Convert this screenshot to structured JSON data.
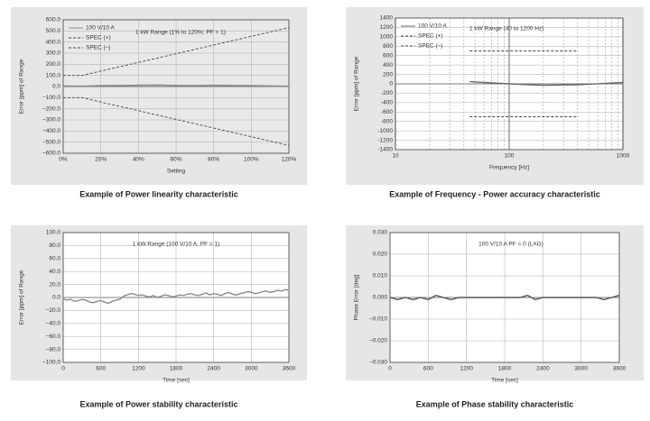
{
  "chart_data": [
    {
      "type": "line",
      "title": "Example of Power linearity characteristic",
      "annotation": "1 kW Range (1% to 120%; PF = 1)",
      "x_label": "Setting",
      "y_label": "Error [ppm] of Range",
      "grid": true,
      "xlim": [
        0,
        120
      ],
      "xticks": [
        {
          "value": 0,
          "label": "0%"
        },
        {
          "value": 20,
          "label": "20%"
        },
        {
          "value": 40,
          "label": "40%"
        },
        {
          "value": 60,
          "label": "60%"
        },
        {
          "value": 80,
          "label": "80%"
        },
        {
          "value": 100,
          "label": "100%"
        },
        {
          "value": 120,
          "label": "120%"
        }
      ],
      "ylim": [
        -600,
        600
      ],
      "yticks": [
        {
          "value": 600,
          "label": "600.0"
        },
        {
          "value": 500,
          "label": "500.0"
        },
        {
          "value": 400,
          "label": "400.0"
        },
        {
          "value": 300,
          "label": "300.0"
        },
        {
          "value": 200,
          "label": "200.0"
        },
        {
          "value": 100,
          "label": "100.0"
        },
        {
          "value": 0,
          "label": "0.0"
        },
        {
          "value": -100,
          "label": "−100.0"
        },
        {
          "value": -200,
          "label": "−200.0"
        },
        {
          "value": -300,
          "label": "−300.0"
        },
        {
          "value": -400,
          "label": "−400.0"
        },
        {
          "value": -500,
          "label": "−500.0"
        },
        {
          "value": -600,
          "label": "−600.0"
        }
      ],
      "x": [
        0,
        10,
        20,
        30,
        40,
        50,
        60,
        70,
        80,
        90,
        100,
        110,
        120
      ],
      "series": [
        {
          "name": "100 V/10 A",
          "color": "#8a8a8a",
          "style": "solid",
          "values": [
            5,
            3,
            8,
            10,
            12,
            14,
            10,
            8,
            12,
            10,
            8,
            5,
            3
          ]
        },
        {
          "name": "SPEC (+)",
          "color": "#444444",
          "style": "dashed",
          "values": [
            100,
            100,
            139,
            178,
            217,
            256,
            295,
            334,
            373,
            412,
            451,
            490,
            529
          ]
        },
        {
          "name": "SPEC (–)",
          "color": "#444444",
          "style": "dashed",
          "values": [
            -100,
            -100,
            -139,
            -178,
            -217,
            -256,
            -295,
            -334,
            -373,
            -412,
            -451,
            -490,
            -529
          ]
        }
      ]
    },
    {
      "type": "line",
      "title": "Example of Frequency -  Power accuracy characteristic",
      "annotation": "1 kW Range (40 to 1200 Hz)",
      "x_label": "Frequency [Hz]",
      "y_label": "Error [ppm] of Range",
      "grid": true,
      "log_x": true,
      "xlim": [
        10,
        1000
      ],
      "xticks": [
        10,
        100,
        1000
      ],
      "ylim": [
        -1400,
        1400
      ],
      "yticks": [
        1400,
        1200,
        1000,
        800,
        600,
        400,
        200,
        0,
        -200,
        -400,
        -600,
        -800,
        -1000,
        -1200,
        -1400
      ],
      "x": [
        45,
        50,
        100,
        200,
        400,
        1000
      ],
      "series": [
        {
          "name": "100 V/10 A",
          "color": "#666666",
          "style": "solid",
          "values": [
            50,
            40,
            0,
            -30,
            -20,
            30
          ]
        },
        {
          "name": "SPEC (+)",
          "color": "#444444",
          "style": "dashed",
          "values": [
            700,
            700,
            700,
            700,
            700,
            null
          ]
        },
        {
          "name": "SPEC (–)",
          "color": "#444444",
          "style": "dashed",
          "values": [
            -700,
            -700,
            -700,
            -700,
            -700,
            null
          ]
        }
      ]
    },
    {
      "type": "line",
      "title": "Example of Power stability characteristic",
      "annotation": "1 kW Range (100 V/10 A, PF = 1)",
      "x_label": "Time [sec]",
      "y_label": "Error [ppm] of Range",
      "grid": true,
      "xlim": [
        0,
        3600
      ],
      "xticks": [
        0,
        600,
        1200,
        1800,
        2400,
        3000,
        3600
      ],
      "ylim": [
        -100,
        100
      ],
      "yticks": [
        {
          "value": 100,
          "label": "100.0"
        },
        {
          "value": 80,
          "label": "80.0"
        },
        {
          "value": 60,
          "label": "60.0"
        },
        {
          "value": 40,
          "label": "40.0"
        },
        {
          "value": 20,
          "label": "20.0"
        },
        {
          "value": 0,
          "label": "0.0"
        },
        {
          "value": -20,
          "label": "−20.0"
        },
        {
          "value": -40,
          "label": "−40.0"
        },
        {
          "value": -60,
          "label": "−60.0"
        },
        {
          "value": -80,
          "label": "−80.0"
        },
        {
          "value": -100,
          "label": "−100.0"
        }
      ],
      "x": [
        0,
        60,
        120,
        180,
        240,
        300,
        360,
        420,
        480,
        540,
        600,
        660,
        720,
        780,
        840,
        900,
        960,
        1020,
        1080,
        1140,
        1200,
        1260,
        1320,
        1380,
        1440,
        1500,
        1560,
        1620,
        1680,
        1740,
        1800,
        1860,
        1920,
        1980,
        2040,
        2100,
        2160,
        2220,
        2280,
        2340,
        2400,
        2460,
        2520,
        2580,
        2640,
        2700,
        2760,
        2820,
        2880,
        2940,
        3000,
        3060,
        3120,
        3180,
        3240,
        3300,
        3360,
        3420,
        3480,
        3540,
        3600
      ],
      "series": [
        {
          "color": "#8a8a8a",
          "style": "solid",
          "values": [
            -2,
            -4,
            -3,
            -6,
            -5,
            -3,
            -4,
            -7,
            -8,
            -6,
            -5,
            -7,
            -9,
            -6,
            -4,
            -3,
            2,
            4,
            6,
            5,
            3,
            4,
            2,
            1,
            3,
            0,
            2,
            4,
            3,
            1,
            2,
            4,
            3,
            5,
            6,
            4,
            3,
            5,
            7,
            4,
            6,
            5,
            3,
            6,
            8,
            5,
            4,
            6,
            7,
            9,
            8,
            6,
            7,
            9,
            10,
            8,
            9,
            11,
            10,
            12,
            11
          ]
        }
      ]
    },
    {
      "type": "line",
      "title": "Example of Phase stability characteristic",
      "annotation": "100 V/10 A PF = 0 (LAG)",
      "x_label": "Time [sec]",
      "y_label": "Phase Error [deg]",
      "grid": true,
      "xlim": [
        0,
        3600
      ],
      "xticks": [
        0,
        600,
        1200,
        1800,
        2400,
        3000,
        3600
      ],
      "ylim": [
        -0.03,
        0.03
      ],
      "yticks": [
        {
          "value": 0.03,
          "label": "0.030"
        },
        {
          "value": 0.02,
          "label": "0.020"
        },
        {
          "value": 0.01,
          "label": "0.010"
        },
        {
          "value": 0,
          "label": "0.000"
        },
        {
          "value": -0.01,
          "label": "−0.010"
        },
        {
          "value": -0.02,
          "label": "−0.020"
        },
        {
          "value": -0.03,
          "label": "−0.030"
        }
      ],
      "x": [
        0,
        120,
        240,
        360,
        480,
        600,
        720,
        840,
        960,
        1080,
        1200,
        1320,
        1440,
        1560,
        1680,
        1800,
        1920,
        2040,
        2160,
        2280,
        2400,
        2520,
        2640,
        2760,
        2880,
        3000,
        3120,
        3240,
        3360,
        3480,
        3600
      ],
      "series": [
        {
          "color": "#555555",
          "style": "solid",
          "values": [
            0,
            -0.001,
            0,
            -0.001,
            0,
            -0.001,
            0.001,
            0,
            -0.001,
            0,
            0,
            0,
            0,
            0,
            0,
            0,
            0,
            0,
            0.001,
            -0.001,
            0,
            0,
            0,
            0,
            0,
            0,
            0,
            0,
            -0.001,
            0,
            0.001
          ]
        }
      ]
    }
  ]
}
